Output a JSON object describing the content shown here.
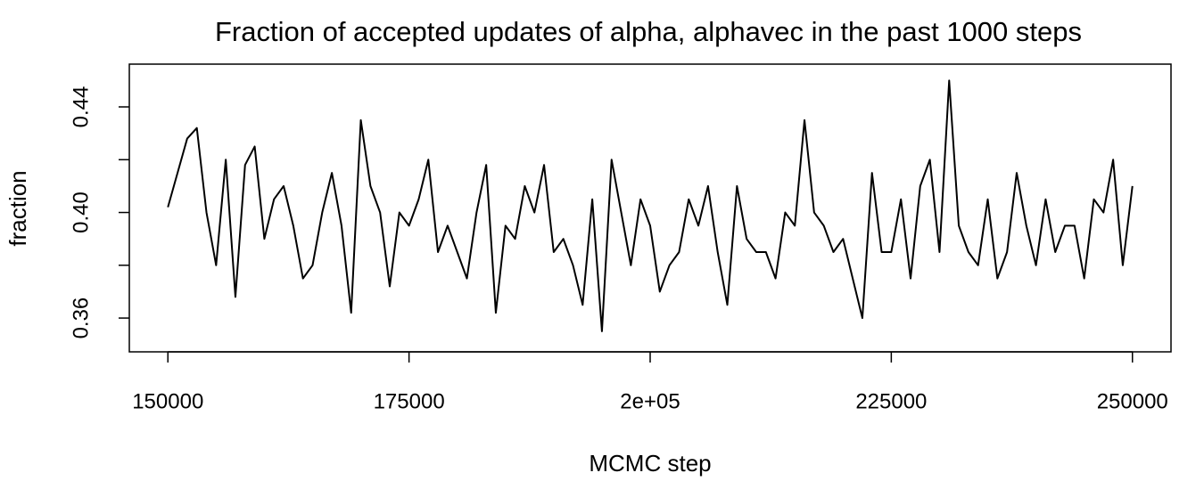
{
  "chart_data": {
    "type": "line",
    "title": "Fraction of accepted updates of alpha, alphavec in the past 1000 steps",
    "x_label": "MCMC step",
    "y_label": "fraction",
    "xlim": [
      146000,
      254000
    ],
    "ylim": [
      0.3472,
      0.4562
    ],
    "xticks": [
      150000,
      175000,
      {
        "value": 200000,
        "label": "2e+05"
      },
      225000,
      250000
    ],
    "yticks": [
      0.36,
      {
        "value": 0.4,
        "label": "0.40"
      },
      0.44
    ],
    "yminorticks": [
      0.38,
      0.42
    ],
    "grid": false,
    "series": [
      {
        "name": "fraction",
        "color": "#000000",
        "x": [
          150000,
          151000,
          152000,
          153000,
          154000,
          155000,
          156000,
          157000,
          158000,
          159000,
          160000,
          161000,
          162000,
          163000,
          164000,
          165000,
          166000,
          167000,
          168000,
          169000,
          170000,
          171000,
          172000,
          173000,
          174000,
          175000,
          176000,
          177000,
          178000,
          179000,
          180000,
          181000,
          182000,
          183000,
          184000,
          185000,
          186000,
          187000,
          188000,
          189000,
          190000,
          191000,
          192000,
          193000,
          194000,
          195000,
          196000,
          197000,
          198000,
          199000,
          200000,
          201000,
          202000,
          203000,
          204000,
          205000,
          206000,
          207000,
          208000,
          209000,
          210000,
          211000,
          212000,
          213000,
          214000,
          215000,
          216000,
          217000,
          218000,
          219000,
          220000,
          221000,
          222000,
          223000,
          224000,
          225000,
          226000,
          227000,
          228000,
          229000,
          230000,
          231000,
          232000,
          233000,
          234000,
          235000,
          236000,
          237000,
          238000,
          239000,
          240000,
          241000,
          242000,
          243000,
          244000,
          245000,
          246000,
          247000,
          248000,
          249000,
          250000
        ],
        "values": [
          0.402,
          0.415,
          0.428,
          0.432,
          0.4,
          0.38,
          0.42,
          0.368,
          0.418,
          0.425,
          0.39,
          0.405,
          0.41,
          0.395,
          0.375,
          0.38,
          0.4,
          0.415,
          0.395,
          0.362,
          0.435,
          0.41,
          0.4,
          0.372,
          0.4,
          0.395,
          0.405,
          0.42,
          0.385,
          0.395,
          0.385,
          0.375,
          0.4,
          0.418,
          0.362,
          0.395,
          0.39,
          0.41,
          0.4,
          0.418,
          0.385,
          0.39,
          0.38,
          0.365,
          0.405,
          0.355,
          0.42,
          0.4,
          0.38,
          0.405,
          0.395,
          0.37,
          0.38,
          0.385,
          0.405,
          0.395,
          0.41,
          0.385,
          0.365,
          0.41,
          0.39,
          0.385,
          0.385,
          0.375,
          0.4,
          0.395,
          0.435,
          0.4,
          0.395,
          0.385,
          0.39,
          0.375,
          0.36,
          0.415,
          0.385,
          0.385,
          0.405,
          0.375,
          0.41,
          0.42,
          0.385,
          0.45,
          0.395,
          0.385,
          0.38,
          0.405,
          0.375,
          0.385,
          0.415,
          0.395,
          0.38,
          0.405,
          0.385,
          0.395,
          0.395,
          0.375,
          0.405,
          0.4,
          0.42,
          0.38,
          0.41
        ]
      }
    ]
  }
}
